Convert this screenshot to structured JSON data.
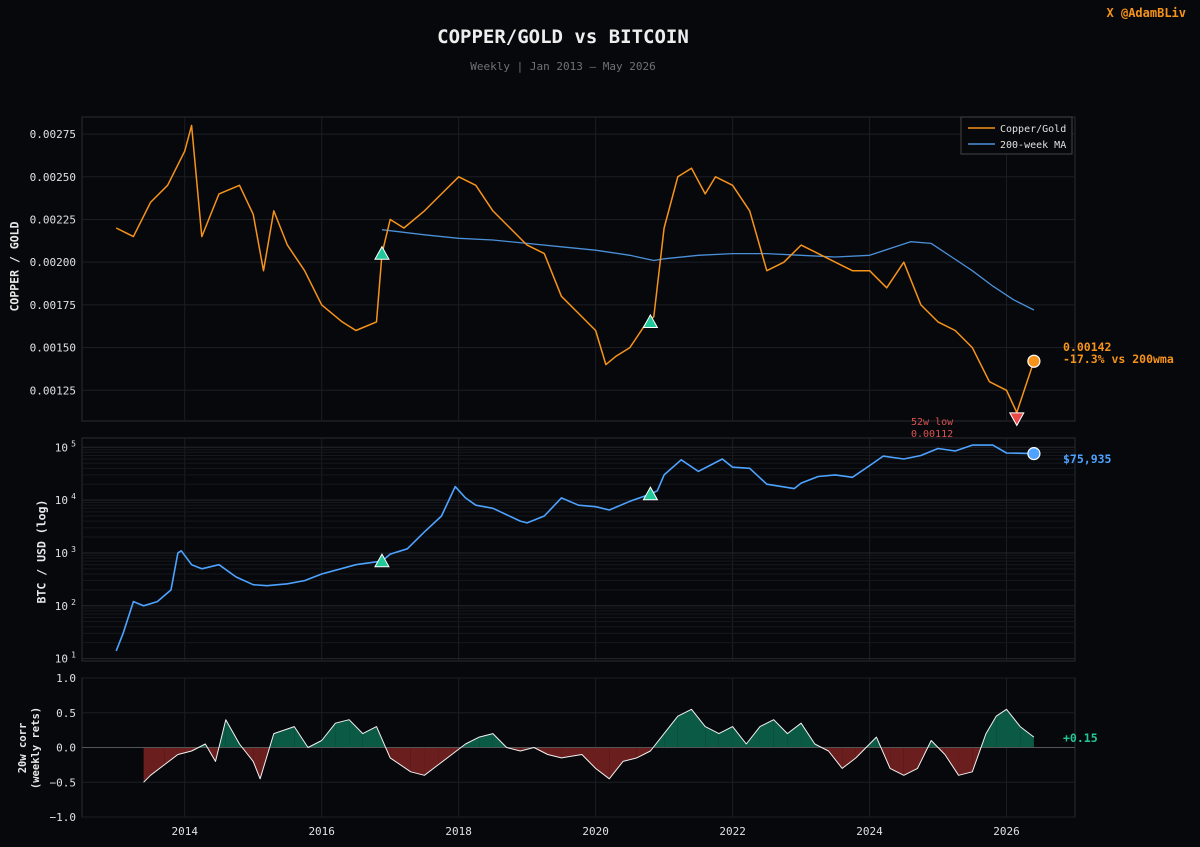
{
  "credit": "X @AdamBLiv",
  "title": "COPPER/GOLD vs BITCOIN",
  "subtitle": "Weekly | Jan 2013 – May 2026",
  "colors": {
    "background": "#07080c",
    "copper": "#f7931a",
    "ma": "#4a90d9",
    "btc": "#4da3ff",
    "pos": "#0b5a45",
    "neg": "#6b1e1e",
    "signal_up": "#22c79a",
    "signal_down": "#e84a4a"
  },
  "panels": {
    "top": {
      "ylabel": "COPPER / GOLD",
      "last_value": "0.00142",
      "last_note": "-17.3% vs 200wma",
      "low_label": "52w low",
      "low_value": "0.00112"
    },
    "middle": {
      "ylabel": "BTC / USD (log)",
      "last_value": "$75,935"
    },
    "bottom": {
      "ylabel_line1": "20w corr",
      "ylabel_line2": "(weekly rets)",
      "last_value": "+0.15"
    }
  },
  "chart_data": [
    {
      "type": "line",
      "ylabel": "COPPER / GOLD",
      "xlim": [
        2012.5,
        2027.0
      ],
      "ylim": [
        0.00107,
        0.00285
      ],
      "yticks": [
        0.00125,
        0.0015,
        0.00175,
        0.002,
        0.00225,
        0.0025,
        0.00275
      ],
      "legend": {
        "placement": "top-right",
        "entries": [
          "Copper/Gold",
          "200-week MA"
        ]
      },
      "grid": true,
      "series": [
        {
          "name": "Copper/Gold",
          "x": [
            2013.0,
            2013.25,
            2013.5,
            2013.75,
            2014.0,
            2014.1,
            2014.25,
            2014.5,
            2014.8,
            2015.0,
            2015.15,
            2015.3,
            2015.5,
            2015.75,
            2016.0,
            2016.3,
            2016.5,
            2016.8,
            2016.88,
            2017.0,
            2017.2,
            2017.5,
            2017.75,
            2018.0,
            2018.25,
            2018.5,
            2018.75,
            2019.0,
            2019.25,
            2019.5,
            2019.75,
            2020.0,
            2020.15,
            2020.3,
            2020.5,
            2020.75,
            2020.85,
            2021.0,
            2021.2,
            2021.4,
            2021.6,
            2021.75,
            2022.0,
            2022.25,
            2022.5,
            2022.75,
            2023.0,
            2023.25,
            2023.5,
            2023.75,
            2024.0,
            2024.25,
            2024.5,
            2024.75,
            2025.0,
            2025.25,
            2025.5,
            2025.75,
            2026.0,
            2026.15,
            2026.4
          ],
          "values": [
            0.0022,
            0.00215,
            0.00235,
            0.00245,
            0.00265,
            0.0028,
            0.00215,
            0.0024,
            0.00245,
            0.00228,
            0.00195,
            0.0023,
            0.0021,
            0.00195,
            0.00175,
            0.00165,
            0.0016,
            0.00165,
            0.00205,
            0.00225,
            0.0022,
            0.0023,
            0.0024,
            0.0025,
            0.00245,
            0.0023,
            0.0022,
            0.0021,
            0.00205,
            0.0018,
            0.0017,
            0.0016,
            0.0014,
            0.00145,
            0.0015,
            0.00165,
            0.00168,
            0.0022,
            0.0025,
            0.00255,
            0.0024,
            0.0025,
            0.00245,
            0.0023,
            0.00195,
            0.002,
            0.0021,
            0.00205,
            0.002,
            0.00195,
            0.00195,
            0.00185,
            0.002,
            0.00175,
            0.00165,
            0.0016,
            0.0015,
            0.0013,
            0.00125,
            0.00112,
            0.00142
          ]
        },
        {
          "name": "200-week MA",
          "x": [
            2016.88,
            2017.5,
            2018.0,
            2018.5,
            2019.0,
            2019.5,
            2020.0,
            2020.5,
            2020.85,
            2021.0,
            2021.5,
            2022.0,
            2022.5,
            2023.0,
            2023.5,
            2024.0,
            2024.3,
            2024.6,
            2024.9,
            2025.2,
            2025.5,
            2025.8,
            2026.1,
            2026.4
          ],
          "values": [
            0.00219,
            0.00216,
            0.00214,
            0.00213,
            0.00211,
            0.00209,
            0.00207,
            0.00204,
            0.00201,
            0.00202,
            0.00204,
            0.00205,
            0.00205,
            0.00204,
            0.00203,
            0.00204,
            0.00208,
            0.00212,
            0.00211,
            0.00203,
            0.00195,
            0.00186,
            0.00178,
            0.00172
          ]
        }
      ],
      "signals_up": [
        {
          "x": 2016.88,
          "y": 0.00205
        },
        {
          "x": 2020.8,
          "y": 0.00165
        }
      ],
      "signals_down": [
        {
          "x": 2026.15,
          "y": 0.00112
        }
      ],
      "last_point": {
        "x": 2026.4,
        "y": 0.00142
      }
    },
    {
      "type": "line",
      "ylabel": "BTC / USD (log)",
      "scale": "log",
      "ylim": [
        9,
        150000
      ],
      "yticks": [
        10,
        100,
        1000,
        10000,
        100000
      ],
      "ytick_labels": [
        "10^1",
        "10^2",
        "10^3",
        "10^4",
        "10^5"
      ],
      "series": [
        {
          "name": "BTC/USD",
          "x": [
            2013.0,
            2013.1,
            2013.25,
            2013.4,
            2013.6,
            2013.8,
            2013.9,
            2013.95,
            2014.1,
            2014.25,
            2014.5,
            2014.75,
            2015.0,
            2015.2,
            2015.5,
            2015.75,
            2016.0,
            2016.5,
            2016.88,
            2017.0,
            2017.25,
            2017.5,
            2017.75,
            2017.95,
            2018.1,
            2018.25,
            2018.5,
            2018.9,
            2019.0,
            2019.25,
            2019.5,
            2019.75,
            2020.0,
            2020.2,
            2020.5,
            2020.8,
            2020.9,
            2021.0,
            2021.25,
            2021.5,
            2021.85,
            2022.0,
            2022.25,
            2022.5,
            2022.9,
            2023.0,
            2023.25,
            2023.5,
            2023.75,
            2024.0,
            2024.2,
            2024.5,
            2024.75,
            2025.0,
            2025.25,
            2025.5,
            2025.8,
            2026.0,
            2026.4
          ],
          "values": [
            14,
            30,
            120,
            100,
            120,
            200,
            1000,
            1100,
            600,
            500,
            600,
            350,
            250,
            240,
            260,
            300,
            400,
            600,
            700,
            950,
            1200,
            2500,
            5000,
            18000,
            11000,
            8000,
            7000,
            4000,
            3700,
            5000,
            11000,
            8000,
            7500,
            6500,
            9500,
            13000,
            15000,
            30000,
            58000,
            35000,
            60000,
            42000,
            40000,
            20000,
            16500,
            21000,
            28000,
            30000,
            27000,
            45000,
            68000,
            60000,
            70000,
            95000,
            85000,
            110000,
            110000,
            78000,
            75935
          ]
        }
      ],
      "signals_up": [
        {
          "x": 2016.88,
          "y": 700
        },
        {
          "x": 2020.8,
          "y": 13000
        }
      ],
      "last_point": {
        "x": 2026.4,
        "y": 75935
      }
    },
    {
      "type": "area",
      "ylabel": "20w corr (weekly rets)",
      "ylim": [
        -1.0,
        1.0
      ],
      "yticks": [
        -1.0,
        -0.5,
        0.0,
        0.5,
        1.0
      ],
      "xticks": [
        2014,
        2016,
        2018,
        2020,
        2022,
        2024,
        2026
      ],
      "series": [
        {
          "name": "20w corr",
          "x": [
            2013.4,
            2013.5,
            2013.7,
            2013.9,
            2014.1,
            2014.3,
            2014.45,
            2014.6,
            2014.8,
            2015.0,
            2015.1,
            2015.3,
            2015.6,
            2015.8,
            2016.0,
            2016.2,
            2016.4,
            2016.6,
            2016.8,
            2017.0,
            2017.3,
            2017.5,
            2017.7,
            2017.9,
            2018.1,
            2018.3,
            2018.5,
            2018.7,
            2018.9,
            2019.1,
            2019.3,
            2019.5,
            2019.8,
            2020.0,
            2020.2,
            2020.4,
            2020.6,
            2020.8,
            2021.0,
            2021.2,
            2021.4,
            2021.6,
            2021.8,
            2022.0,
            2022.2,
            2022.4,
            2022.6,
            2022.8,
            2023.0,
            2023.2,
            2023.4,
            2023.6,
            2023.8,
            2024.0,
            2024.1,
            2024.3,
            2024.5,
            2024.7,
            2024.9,
            2025.1,
            2025.3,
            2025.5,
            2025.7,
            2025.85,
            2026.0,
            2026.2,
            2026.4
          ],
          "values": [
            -0.5,
            -0.4,
            -0.25,
            -0.1,
            -0.05,
            0.05,
            -0.2,
            0.4,
            0.05,
            -0.2,
            -0.45,
            0.2,
            0.3,
            0.0,
            0.1,
            0.35,
            0.4,
            0.2,
            0.3,
            -0.15,
            -0.35,
            -0.4,
            -0.25,
            -0.1,
            0.05,
            0.15,
            0.2,
            0.0,
            -0.05,
            0.0,
            -0.1,
            -0.15,
            -0.1,
            -0.3,
            -0.45,
            -0.2,
            -0.15,
            -0.05,
            0.2,
            0.45,
            0.55,
            0.3,
            0.2,
            0.3,
            0.05,
            0.3,
            0.4,
            0.2,
            0.35,
            0.05,
            -0.05,
            -0.3,
            -0.15,
            0.05,
            0.15,
            -0.3,
            -0.4,
            -0.3,
            0.1,
            -0.1,
            -0.4,
            -0.35,
            0.2,
            0.45,
            0.55,
            0.3,
            0.15
          ]
        }
      ],
      "last_point": {
        "x": 2026.4,
        "y": 0.15
      }
    }
  ]
}
